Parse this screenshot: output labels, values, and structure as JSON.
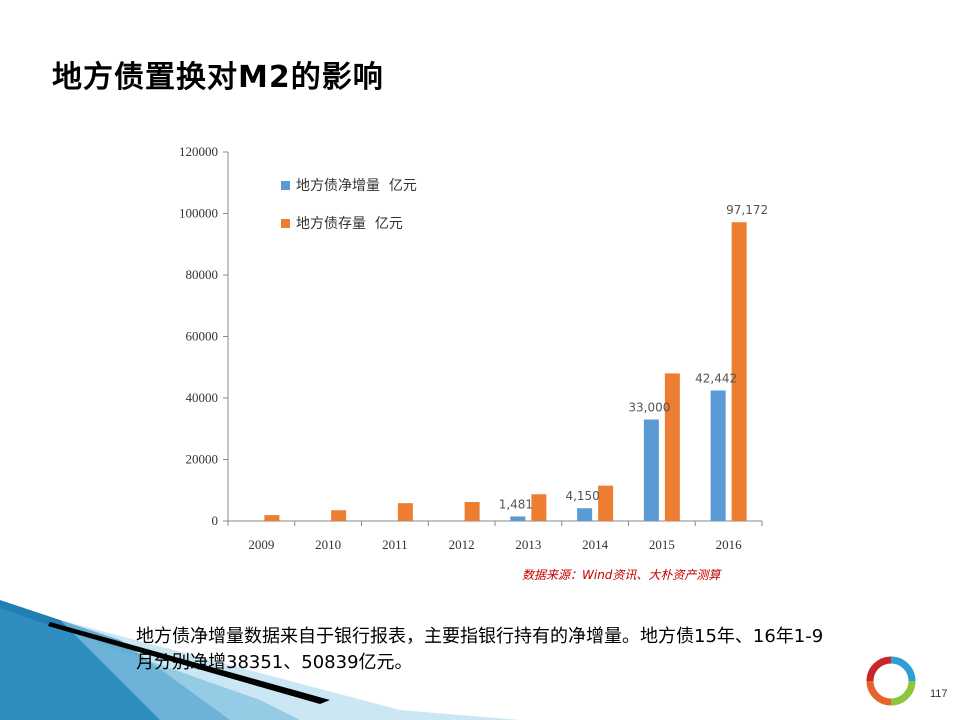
{
  "slide": {
    "title": "地方债置换对M2的影响",
    "source_note": "数据来源：Wind资讯、大朴资产测算",
    "body_text": "地方债净增量数据来自于银行报表，主要指银行持有的净增量。地方债15年、16年1-9月分别净增38351、50839亿元。",
    "page_number": "117"
  },
  "colors": {
    "series_net": "#5b9bd5",
    "series_stock": "#ed7d31",
    "deco_blue": "#1f7fb5",
    "deco_light": "#9fd4ea"
  },
  "chart_data": {
    "type": "bar",
    "categories": [
      "2009",
      "2010",
      "2011",
      "2012",
      "2013",
      "2014",
      "2015",
      "2016"
    ],
    "series": [
      {
        "name": "地方债净增量  亿元",
        "values": [
          0,
          0,
          0,
          0,
          1481,
          4150,
          33000,
          42442
        ],
        "labels": [
          "",
          "",
          "",
          "",
          "1,481",
          "4,150",
          "33,000",
          "42,442"
        ]
      },
      {
        "name": "地方债存量  亿元",
        "values": [
          1900,
          3500,
          5800,
          6200,
          8700,
          11500,
          48000,
          97172
        ],
        "labels": [
          "",
          "",
          "",
          "",
          "",
          "",
          "",
          "97,172"
        ]
      }
    ],
    "ylim": [
      0,
      120000
    ],
    "yticks": [
      "0",
      "20000",
      "40000",
      "60000",
      "80000",
      "100000",
      "120000"
    ],
    "legend": "top-left inside plot",
    "grid": false
  }
}
